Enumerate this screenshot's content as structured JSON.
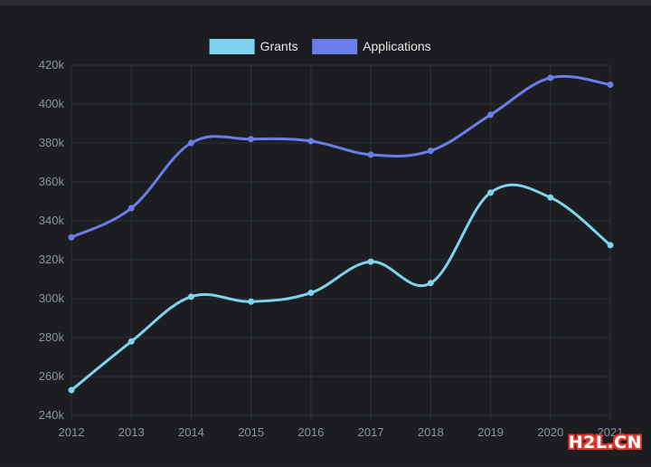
{
  "chart_data": {
    "type": "line",
    "title": "",
    "xlabel": "",
    "ylabel": "",
    "categories": [
      "2012",
      "2013",
      "2014",
      "2015",
      "2016",
      "2017",
      "2018",
      "2019",
      "2020",
      "2021"
    ],
    "ylim": [
      240000,
      420000
    ],
    "yticks": [
      240000,
      260000,
      280000,
      300000,
      320000,
      340000,
      360000,
      380000,
      400000,
      420000
    ],
    "ytick_labels": [
      "240k",
      "260k",
      "280k",
      "300k",
      "320k",
      "340k",
      "360k",
      "380k",
      "400k",
      "420k"
    ],
    "grid": true,
    "legend_position": "top-center",
    "series": [
      {
        "name": "Grants",
        "color": "#7fd3ee",
        "values": [
          253000,
          278000,
          301000,
          298500,
          303000,
          319000,
          308000,
          354500,
          352000,
          327500
        ]
      },
      {
        "name": "Applications",
        "color": "#6b7de8",
        "values": [
          331500,
          346500,
          380000,
          382000,
          381000,
          374000,
          376000,
          394500,
          413500,
          410000
        ]
      }
    ]
  },
  "watermark": "H2L.CN"
}
